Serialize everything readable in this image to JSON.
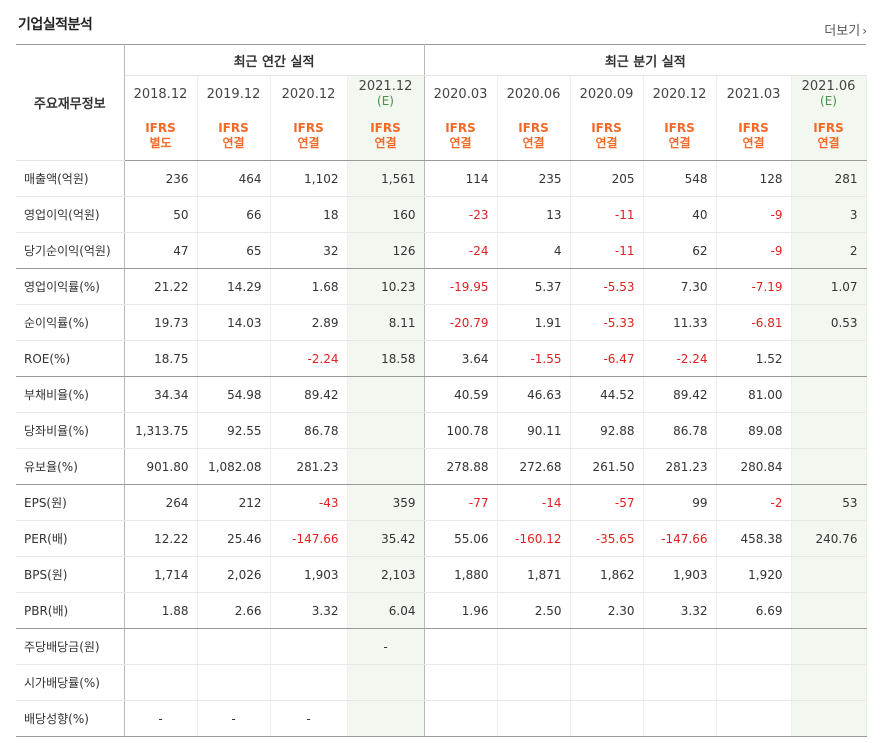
{
  "header": {
    "title": "기업실적분석",
    "more_label": "더보기",
    "more_icon": "chevron-right-icon"
  },
  "table": {
    "row_header": "주요재무정보",
    "groups": [
      {
        "label": "최근 연간 실적",
        "span": 4
      },
      {
        "label": "최근 분기 실적",
        "span": 6
      }
    ],
    "periods": [
      "2018.12",
      "2019.12",
      "2020.12",
      "2021.12",
      "2020.03",
      "2020.06",
      "2020.09",
      "2020.12",
      "2021.03",
      "2021.06"
    ],
    "estimate_flags": [
      false,
      false,
      false,
      true,
      false,
      false,
      false,
      false,
      false,
      true
    ],
    "estimate_label": "(E)",
    "accounting": [
      [
        "IFRS",
        "별도"
      ],
      [
        "IFRS",
        "연결"
      ],
      [
        "IFRS",
        "연결"
      ],
      [
        "IFRS",
        "연결"
      ],
      [
        "IFRS",
        "연결"
      ],
      [
        "IFRS",
        "연결"
      ],
      [
        "IFRS",
        "연결"
      ],
      [
        "IFRS",
        "연결"
      ],
      [
        "IFRS",
        "연결"
      ],
      [
        "IFRS",
        "연결"
      ]
    ],
    "rows": [
      {
        "label": "매출액(억원)",
        "values": [
          "236",
          "464",
          "1,102",
          "1,561",
          "114",
          "235",
          "205",
          "548",
          "128",
          "281"
        ]
      },
      {
        "label": "영업이익(억원)",
        "values": [
          "50",
          "66",
          "18",
          "160",
          "-23",
          "13",
          "-11",
          "40",
          "-9",
          "3"
        ]
      },
      {
        "label": "당기순이익(억원)",
        "values": [
          "47",
          "65",
          "32",
          "126",
          "-24",
          "4",
          "-11",
          "62",
          "-9",
          "2"
        ],
        "group_end": true
      },
      {
        "label": "영업이익률(%)",
        "values": [
          "21.22",
          "14.29",
          "1.68",
          "10.23",
          "-19.95",
          "5.37",
          "-5.53",
          "7.30",
          "-7.19",
          "1.07"
        ]
      },
      {
        "label": "순이익률(%)",
        "values": [
          "19.73",
          "14.03",
          "2.89",
          "8.11",
          "-20.79",
          "1.91",
          "-5.33",
          "11.33",
          "-6.81",
          "0.53"
        ]
      },
      {
        "label": "ROE(%)",
        "values": [
          "18.75",
          "",
          "-2.24",
          "18.58",
          "3.64",
          "-1.55",
          "-6.47",
          "-2.24",
          "1.52",
          ""
        ],
        "group_end": true
      },
      {
        "label": "부채비율(%)",
        "values": [
          "34.34",
          "54.98",
          "89.42",
          "",
          "40.59",
          "46.63",
          "44.52",
          "89.42",
          "81.00",
          ""
        ]
      },
      {
        "label": "당좌비율(%)",
        "values": [
          "1,313.75",
          "92.55",
          "86.78",
          "",
          "100.78",
          "90.11",
          "92.88",
          "86.78",
          "89.08",
          ""
        ]
      },
      {
        "label": "유보율(%)",
        "values": [
          "901.80",
          "1,082.08",
          "281.23",
          "",
          "278.88",
          "272.68",
          "261.50",
          "281.23",
          "280.84",
          ""
        ],
        "group_end": true
      },
      {
        "label": "EPS(원)",
        "values": [
          "264",
          "212",
          "-43",
          "359",
          "-77",
          "-14",
          "-57",
          "99",
          "-2",
          "53"
        ]
      },
      {
        "label": "PER(배)",
        "values": [
          "12.22",
          "25.46",
          "-147.66",
          "35.42",
          "55.06",
          "-160.12",
          "-35.65",
          "-147.66",
          "458.38",
          "240.76"
        ]
      },
      {
        "label": "BPS(원)",
        "values": [
          "1,714",
          "2,026",
          "1,903",
          "2,103",
          "1,880",
          "1,871",
          "1,862",
          "1,903",
          "1,920",
          ""
        ]
      },
      {
        "label": "PBR(배)",
        "values": [
          "1.88",
          "2.66",
          "3.32",
          "6.04",
          "1.96",
          "2.50",
          "2.30",
          "3.32",
          "6.69",
          ""
        ],
        "group_end": true
      },
      {
        "label": "주당배당금(원)",
        "values": [
          "",
          "",
          "",
          "-",
          "",
          "",
          "",
          "",
          "",
          ""
        ]
      },
      {
        "label": "시가배당률(%)",
        "values": [
          "",
          "",
          "",
          "",
          "",
          "",
          "",
          "",
          "",
          ""
        ]
      },
      {
        "label": "배당성향(%)",
        "values": [
          "-",
          "-",
          "-",
          "",
          "",
          "",
          "",
          "",
          "",
          ""
        ]
      }
    ]
  },
  "colors": {
    "negative": "#e02020",
    "accounting": "#f26a2a",
    "estimate_bg": "#f2f8ef",
    "estimate_text": "#4a8f4a"
  }
}
